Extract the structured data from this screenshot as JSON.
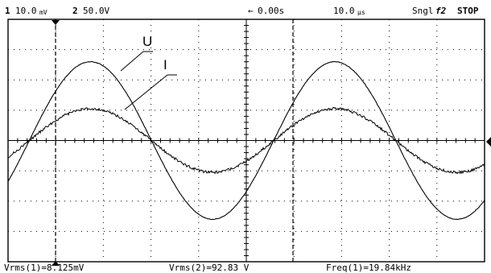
{
  "status_bar": {
    "ch1_number": "1",
    "ch1_scale": "10.0",
    "ch1_unit_glyph": "mV",
    "ch2_number": "2",
    "ch2_scale": "50.0V",
    "trigger_arrow": "←",
    "time_offset": "0.00s",
    "timebase": "10.0",
    "timebase_unit_glyph": "µs",
    "trigger_mode": "Sngl",
    "trigger_source": "f2",
    "run_state": "STOP"
  },
  "traces": [
    {
      "label": "U",
      "amplitude_divisions": 2.6,
      "periods_shown": 1.95,
      "phase_cycles": -0.087,
      "noise": "low"
    },
    {
      "label": "I",
      "amplitude_divisions": 1.05,
      "periods_shown": 1.95,
      "phase_cycles": -0.087,
      "noise": "high"
    }
  ],
  "display": {
    "horizontal_divisions": 10,
    "vertical_divisions": 8,
    "grid": "dotted"
  },
  "measurements": {
    "vrms1": "Vrms(1)=8.125mV",
    "vrms2": "Vrms(2)=92.83 V",
    "freq1": "Freq(1)=19.84kHz"
  },
  "colors": {
    "trace": "#000000",
    "background": "#ffffff",
    "grid": "#000000"
  }
}
